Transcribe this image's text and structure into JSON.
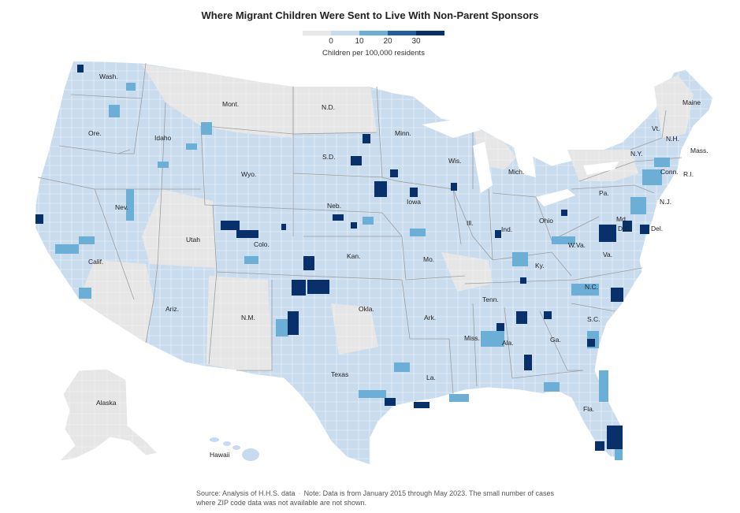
{
  "title": "Where Migrant Children Were Sent to Live With Non-Parent Sponsors",
  "legend": {
    "caption": "Children per 100,000 residents",
    "ticks": [
      "0",
      "10",
      "20",
      "30"
    ],
    "colors": [
      "#e8e8e8",
      "#c6dbef",
      "#6baed6",
      "#1f5fa8",
      "#08306b"
    ]
  },
  "states": [
    {
      "name": "Wash."
    },
    {
      "name": "Ore."
    },
    {
      "name": "Calif."
    },
    {
      "name": "Nev."
    },
    {
      "name": "Idaho"
    },
    {
      "name": "Mont."
    },
    {
      "name": "Wyo."
    },
    {
      "name": "Utah"
    },
    {
      "name": "Colo."
    },
    {
      "name": "Ariz."
    },
    {
      "name": "N.M."
    },
    {
      "name": "N.D."
    },
    {
      "name": "S.D."
    },
    {
      "name": "Neb."
    },
    {
      "name": "Kan."
    },
    {
      "name": "Okla."
    },
    {
      "name": "Texas"
    },
    {
      "name": "Minn."
    },
    {
      "name": "Iowa"
    },
    {
      "name": "Mo."
    },
    {
      "name": "Ark."
    },
    {
      "name": "La."
    },
    {
      "name": "Wis."
    },
    {
      "name": "Ill."
    },
    {
      "name": "Mich."
    },
    {
      "name": "Ind."
    },
    {
      "name": "Ohio"
    },
    {
      "name": "Ky."
    },
    {
      "name": "Tenn."
    },
    {
      "name": "Miss."
    },
    {
      "name": "Ala."
    },
    {
      "name": "Ga."
    },
    {
      "name": "Fla."
    },
    {
      "name": "S.C."
    },
    {
      "name": "N.C."
    },
    {
      "name": "Va."
    },
    {
      "name": "W.Va."
    },
    {
      "name": "Pa."
    },
    {
      "name": "N.Y."
    },
    {
      "name": "Vt."
    },
    {
      "name": "N.H."
    },
    {
      "name": "Maine"
    },
    {
      "name": "Mass."
    },
    {
      "name": "Conn."
    },
    {
      "name": "R.I."
    },
    {
      "name": "N.J."
    },
    {
      "name": "Del."
    },
    {
      "name": "Md."
    },
    {
      "name": "D.C."
    },
    {
      "name": "Alaska"
    },
    {
      "name": "Hawaii"
    }
  ],
  "footer": {
    "source": "Source: Analysis of H.H.S. data",
    "note": "Note: Data is from January 2015 through May 2023. The small number of cases where ZIP code data was not available are not shown."
  }
}
